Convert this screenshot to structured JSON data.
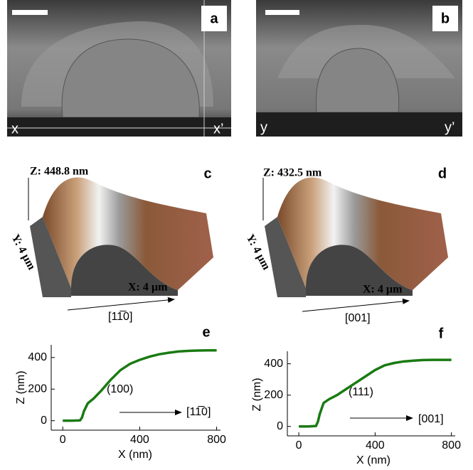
{
  "panels": {
    "a": {
      "label": "a",
      "left_mark": "x",
      "right_mark": "x’"
    },
    "b": {
      "label": "b",
      "left_mark": "y",
      "right_mark": "y’"
    },
    "c": {
      "label": "c",
      "z_label": "Z: 448.8 nm",
      "y_label": "Y: 4 µm",
      "x_label": "X: 4 µm",
      "direction": "[11̅0]"
    },
    "d": {
      "label": "d",
      "z_label": "Z: 432.5 nm",
      "y_label": "Y: 4 µm",
      "x_label": "X: 4 µm",
      "direction": "[001]"
    }
  },
  "chart_data": [
    {
      "type": "line",
      "panel_label": "e",
      "annotation": "(100)",
      "direction": "[11̅0]",
      "xlabel": "X (nm)",
      "ylabel": "Z (nm)",
      "color": "#1a7a12",
      "x": [
        0,
        50,
        90,
        100,
        110,
        130,
        160,
        200,
        250,
        300,
        350,
        400,
        450,
        500,
        550,
        600,
        650,
        700,
        750,
        800
      ],
      "values": [
        0,
        0,
        2,
        20,
        60,
        110,
        140,
        190,
        260,
        320,
        360,
        385,
        405,
        420,
        430,
        438,
        442,
        444,
        445,
        445
      ],
      "xlim": [
        -60,
        820
      ],
      "ylim": [
        -60,
        480
      ],
      "xticks": [
        0,
        400,
        800
      ],
      "yticks": [
        0,
        200,
        400
      ]
    },
    {
      "type": "line",
      "panel_label": "f",
      "annotation": "(111)",
      "direction": "[001]",
      "xlabel": "X (nm)",
      "ylabel": "Z (nm)",
      "color": "#1a7a12",
      "x": [
        0,
        50,
        90,
        100,
        110,
        130,
        160,
        200,
        250,
        300,
        350,
        400,
        450,
        500,
        550,
        600,
        650,
        700,
        750,
        800
      ],
      "values": [
        0,
        0,
        3,
        30,
        80,
        150,
        175,
        200,
        240,
        280,
        320,
        360,
        390,
        405,
        415,
        420,
        424,
        425,
        425,
        425
      ],
      "xlim": [
        -60,
        820
      ],
      "ylim": [
        -60,
        480
      ],
      "xticks": [
        0,
        400,
        800
      ],
      "yticks": [
        0,
        200,
        400
      ]
    }
  ]
}
